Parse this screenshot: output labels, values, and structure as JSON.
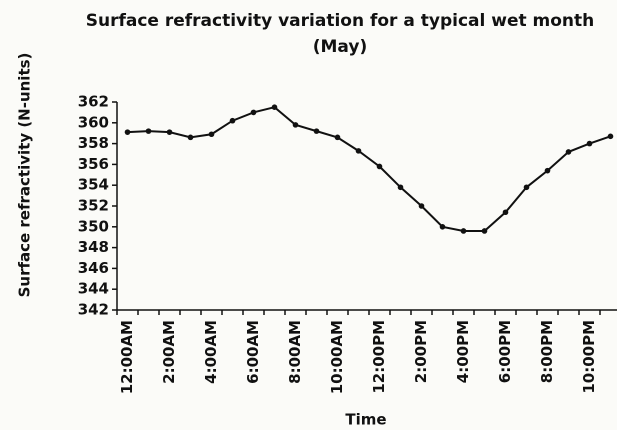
{
  "chart_data": {
    "type": "line",
    "title": "Surface refractivity variation for a typical wet month (May)",
    "xlabel": "Time",
    "ylabel": "Surface refractivity (N-units)",
    "categories": [
      "12:00AM",
      null,
      "2:00AM",
      null,
      "4:00AM",
      null,
      "6:00AM",
      null,
      "8:00AM",
      null,
      "10:00AM",
      null,
      "12:00PM",
      null,
      "2:00PM",
      null,
      "4:00PM",
      null,
      "6:00PM",
      null,
      "8:00PM",
      null,
      "10:00PM",
      null
    ],
    "values": [
      359.1,
      359.2,
      359.1,
      358.6,
      358.9,
      360.2,
      361.0,
      361.5,
      359.8,
      359.2,
      358.6,
      357.3,
      355.8,
      353.8,
      352.0,
      350.0,
      349.6,
      349.6,
      351.4,
      353.8,
      355.4,
      357.2,
      358.0,
      358.7
    ],
    "color": "#111111",
    "ylim": [
      342,
      362
    ],
    "yticks": [
      342,
      344,
      346,
      348,
      350,
      352,
      354,
      356,
      358,
      360,
      362
    ],
    "grid": false
  }
}
